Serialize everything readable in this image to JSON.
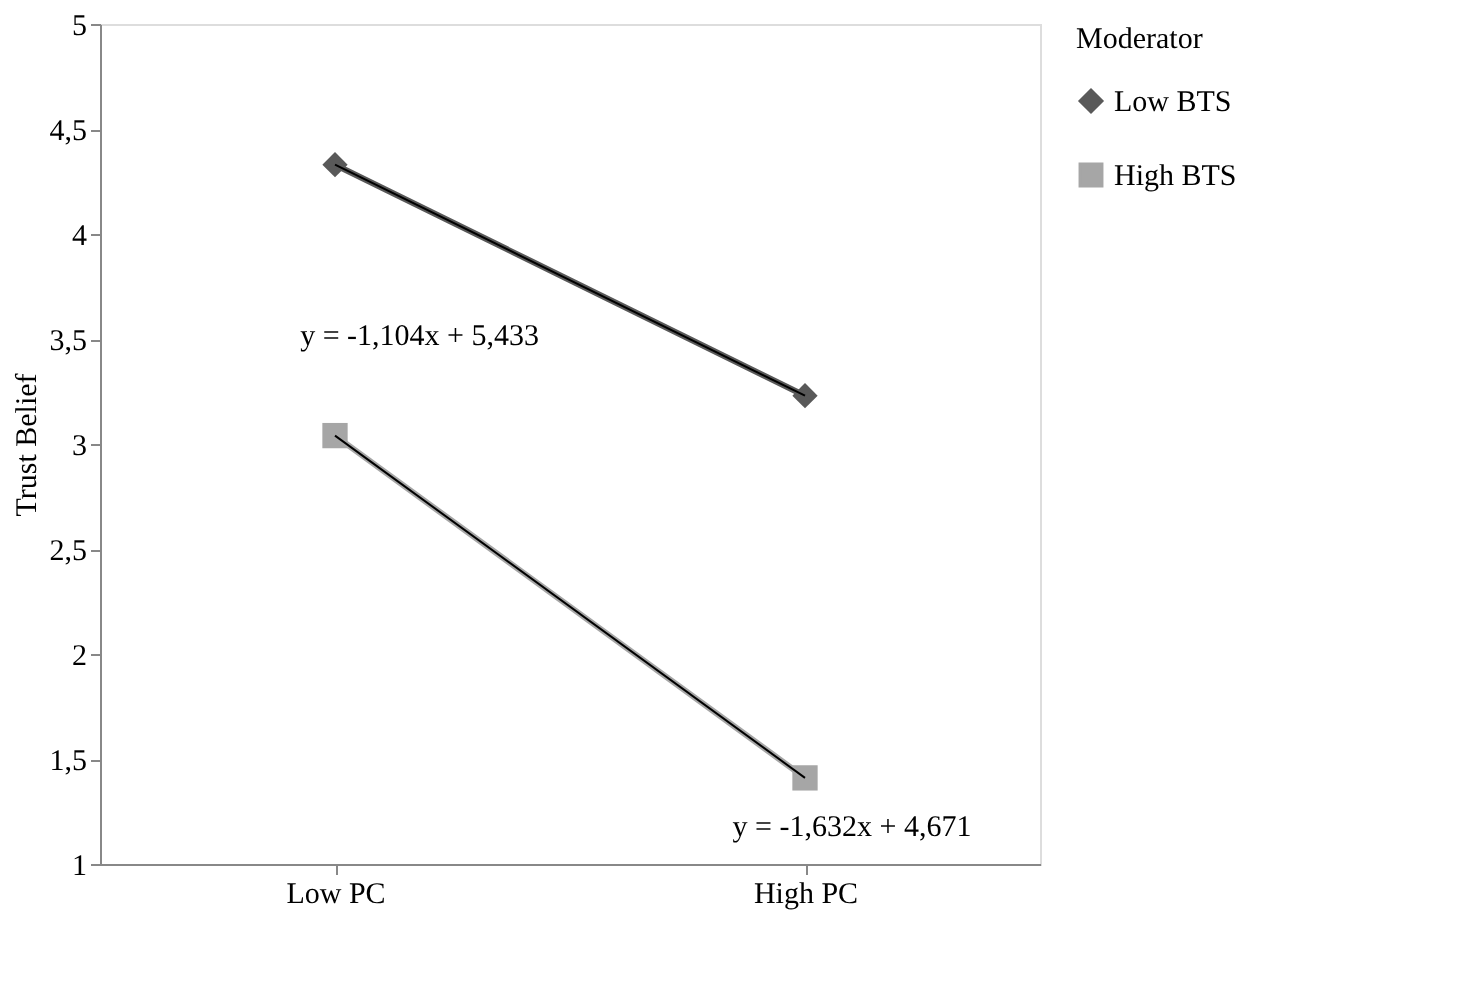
{
  "chart_data": {
    "type": "line",
    "ylabel": "Trust Belief",
    "legend_title": "Moderator",
    "legend": "right",
    "grid": false,
    "categories": [
      "Low PC",
      "High PC"
    ],
    "ylim": [
      1,
      5
    ],
    "yticks": [
      1,
      {
        "value": 1.5,
        "label": "1,5"
      },
      2,
      {
        "value": 2.5,
        "label": "2,5"
      },
      3,
      {
        "value": 3.5,
        "label": "3,5"
      },
      4,
      {
        "value": 4.5,
        "label": "4,5"
      },
      5
    ],
    "series": [
      {
        "name": "Low BTS",
        "color": "#595959",
        "marker": "diamond",
        "values": [
          4.33,
          3.23
        ]
      },
      {
        "name": "High BTS",
        "color": "#a6a6a6",
        "marker": "square",
        "values": [
          3.04,
          1.41
        ]
      },
      {
        "type": "line",
        "color": "#000000",
        "marker": "none",
        "values": [
          4.33,
          3.23
        ]
      },
      {
        "type": "line",
        "color": "#000000",
        "marker": "none",
        "values": [
          3.04,
          1.41
        ]
      }
    ],
    "annotations": [
      "y = -1,104x + 5,433",
      "y = -1,632x + 4,671"
    ]
  }
}
